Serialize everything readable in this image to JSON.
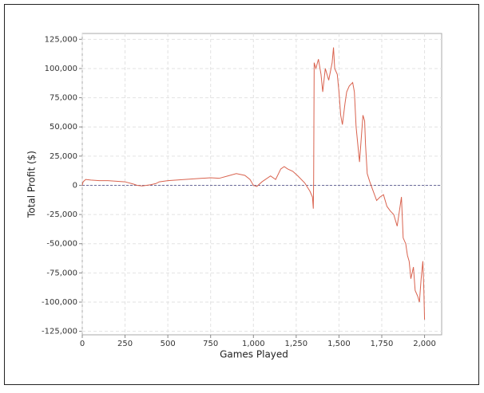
{
  "chart_data": {
    "type": "line",
    "xlabel": "Games Played",
    "ylabel": "Total Profit ($)",
    "color": "#d9634f",
    "grid": true,
    "xlim": [
      0,
      2100
    ],
    "xticks": [
      0,
      250,
      500,
      750,
      {
        "value": 1000,
        "label": "1,000"
      },
      {
        "value": 1250,
        "label": "1,250"
      },
      {
        "value": 1500,
        "label": "1,500"
      },
      {
        "value": 1750,
        "label": "1,750"
      },
      {
        "value": 2000,
        "label": "2,000"
      }
    ],
    "ylim": [
      -128000,
      130000
    ],
    "yticks": [
      {
        "value": -125000,
        "label": "-125,000"
      },
      {
        "value": -100000,
        "label": "-100,000"
      },
      {
        "value": -75000,
        "label": "-75,000"
      },
      {
        "value": -50000,
        "label": "-50,000"
      },
      {
        "value": -25000,
        "label": "-25,000"
      },
      0,
      {
        "value": 25000,
        "label": "25,000"
      },
      {
        "value": 50000,
        "label": "50,000"
      },
      {
        "value": 75000,
        "label": "75,000"
      },
      {
        "value": 100000,
        "label": "100,000"
      },
      {
        "value": 125000,
        "label": "125,000"
      }
    ],
    "x": [
      0,
      5,
      20,
      50,
      100,
      150,
      200,
      250,
      300,
      320,
      350,
      400,
      430,
      450,
      500,
      550,
      600,
      650,
      700,
      750,
      800,
      850,
      900,
      950,
      980,
      1000,
      1020,
      1050,
      1100,
      1130,
      1160,
      1180,
      1200,
      1230,
      1260,
      1300,
      1330,
      1345,
      1350,
      1352,
      1355,
      1365,
      1380,
      1395,
      1405,
      1420,
      1440,
      1460,
      1468,
      1475,
      1490,
      1500,
      1510,
      1520,
      1535,
      1545,
      1560,
      1580,
      1590,
      1600,
      1610,
      1620,
      1630,
      1640,
      1650,
      1655,
      1665,
      1680,
      1700,
      1720,
      1740,
      1760,
      1780,
      1800,
      1820,
      1840,
      1855,
      1865,
      1875,
      1890,
      1900,
      1910,
      1920,
      1935,
      1945,
      1960,
      1970,
      1980,
      1990,
      1996,
      2000
    ],
    "values": [
      0,
      3000,
      5000,
      4500,
      4000,
      4000,
      3500,
      3000,
      1000,
      0,
      -500,
      500,
      1500,
      3000,
      4000,
      4500,
      5000,
      5500,
      6000,
      6500,
      6000,
      8000,
      10000,
      8500,
      5000,
      0,
      -1000,
      3000,
      8000,
      5000,
      14000,
      16000,
      14000,
      12000,
      8000,
      2000,
      -5000,
      -10000,
      -20000,
      5000,
      105000,
      100000,
      108000,
      95000,
      80000,
      100000,
      90000,
      105000,
      118000,
      100000,
      95000,
      80000,
      60000,
      52000,
      70000,
      80000,
      85000,
      88000,
      80000,
      50000,
      35000,
      20000,
      40000,
      60000,
      55000,
      35000,
      10000,
      3000,
      -5000,
      -13000,
      -10000,
      -8000,
      -18000,
      -22000,
      -25000,
      -35000,
      -20000,
      -10000,
      -45000,
      -50000,
      -60000,
      -65000,
      -80000,
      -70000,
      -90000,
      -95000,
      -100000,
      -80000,
      -65000,
      -90000,
      -115000
    ]
  }
}
